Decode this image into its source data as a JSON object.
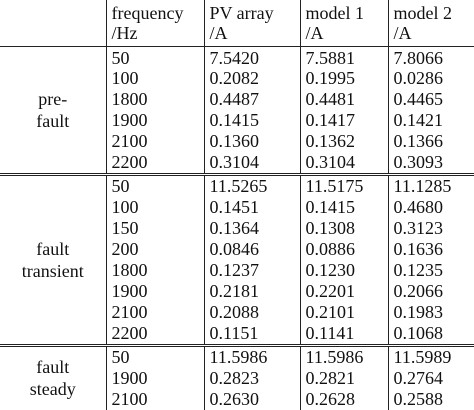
{
  "header": {
    "c1_line1": "frequency",
    "c1_line2": "/Hz",
    "c2_line1": "PV array",
    "c2_line2": "/A",
    "c3_line1": "model 1",
    "c3_line2": "/A",
    "c4_line1": "model 2",
    "c4_line2": "/A"
  },
  "groups": [
    {
      "label_line1": "pre-",
      "label_line2": "fault",
      "rows": [
        {
          "freq": "50",
          "pv": "7.5420",
          "m1": "7.5881",
          "m2": "7.8066"
        },
        {
          "freq": "100",
          "pv": "0.2082",
          "m1": "0.1995",
          "m2": "0.0286"
        },
        {
          "freq": "1800",
          "pv": "0.4487",
          "m1": "0.4481",
          "m2": "0.4465"
        },
        {
          "freq": "1900",
          "pv": "0.1415",
          "m1": "0.1417",
          "m2": "0.1421"
        },
        {
          "freq": "2100",
          "pv": "0.1360",
          "m1": "0.1362",
          "m2": "0.1366"
        },
        {
          "freq": "2200",
          "pv": "0.3104",
          "m1": "0.3104",
          "m2": "0.3093"
        }
      ]
    },
    {
      "label_line1": "fault",
      "label_line2": "transient",
      "rows": [
        {
          "freq": "50",
          "pv": "11.5265",
          "m1": "11.5175",
          "m2": "11.1285"
        },
        {
          "freq": "100",
          "pv": "0.1451",
          "m1": "0.1415",
          "m2": "0.4680"
        },
        {
          "freq": "150",
          "pv": "0.1364",
          "m1": "0.1308",
          "m2": "0.3123"
        },
        {
          "freq": "200",
          "pv": "0.0846",
          "m1": "0.0886",
          "m2": "0.1636"
        },
        {
          "freq": "1800",
          "pv": "0.1237",
          "m1": "0.1230",
          "m2": "0.1235"
        },
        {
          "freq": "1900",
          "pv": "0.2181",
          "m1": "0.2201",
          "m2": "0.2066"
        },
        {
          "freq": "2100",
          "pv": "0.2088",
          "m1": "0.2101",
          "m2": "0.1983"
        },
        {
          "freq": "2200",
          "pv": "0.1151",
          "m1": "0.1141",
          "m2": "0.1068"
        }
      ]
    },
    {
      "label_line1": "fault",
      "label_line2": "steady",
      "rows": [
        {
          "freq": "50",
          "pv": "11.5986",
          "m1": "11.5986",
          "m2": "11.5989"
        },
        {
          "freq": "1900",
          "pv": "0.2823",
          "m1": "0.2821",
          "m2": "0.2764"
        },
        {
          "freq": "2100",
          "pv": "0.2630",
          "m1": "0.2628",
          "m2": "0.2588"
        }
      ]
    }
  ]
}
